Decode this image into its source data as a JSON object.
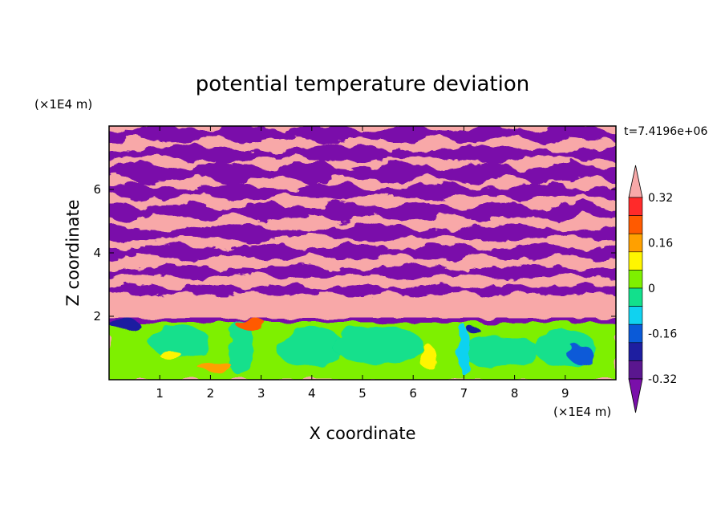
{
  "chart_data": {
    "type": "heatmap",
    "title": "potential temperature deviation",
    "xlabel": "X coordinate",
    "ylabel": "Z coordinate",
    "x_unit": "(×1E4 m)",
    "y_unit": "(×1E4 m)",
    "time_label": "t=7.4196e+06",
    "xlim": [
      0,
      10
    ],
    "ylim": [
      0,
      8
    ],
    "x_ticks": [
      "1",
      "2",
      "3",
      "4",
      "5",
      "6",
      "7",
      "8",
      "9"
    ],
    "y_ticks": [
      "2",
      "4",
      "6"
    ],
    "colorbar": {
      "labels": [
        "0.32",
        "0.16",
        "0",
        "-0.16",
        "-0.32"
      ],
      "label_values": [
        0.32,
        0.16,
        0,
        -0.16,
        -0.32
      ],
      "extend": "both",
      "levels": [
        -0.4,
        -0.32,
        -0.24,
        -0.16,
        -0.08,
        0,
        0.08,
        0.16,
        0.24,
        0.32,
        0.4
      ],
      "colors": [
        "#7a0faa",
        "#5a168f",
        "#1e1ea0",
        "#0a5ad8",
        "#10d2f0",
        "#12e08c",
        "#7ef000",
        "#fff500",
        "#ffa000",
        "#ff5a00",
        "#ff2a2a",
        "#f8a8a8"
      ]
    },
    "regions": [
      {
        "z_range": [
          2,
          8
        ],
        "pattern": "alternating layers",
        "values": [
          -0.4,
          0.4
        ]
      },
      {
        "z_range": [
          0,
          2
        ],
        "pattern": "mixed boundary layer",
        "values": [
          0.04,
          -0.04,
          0.12,
          -0.12,
          0.2
        ]
      }
    ]
  }
}
